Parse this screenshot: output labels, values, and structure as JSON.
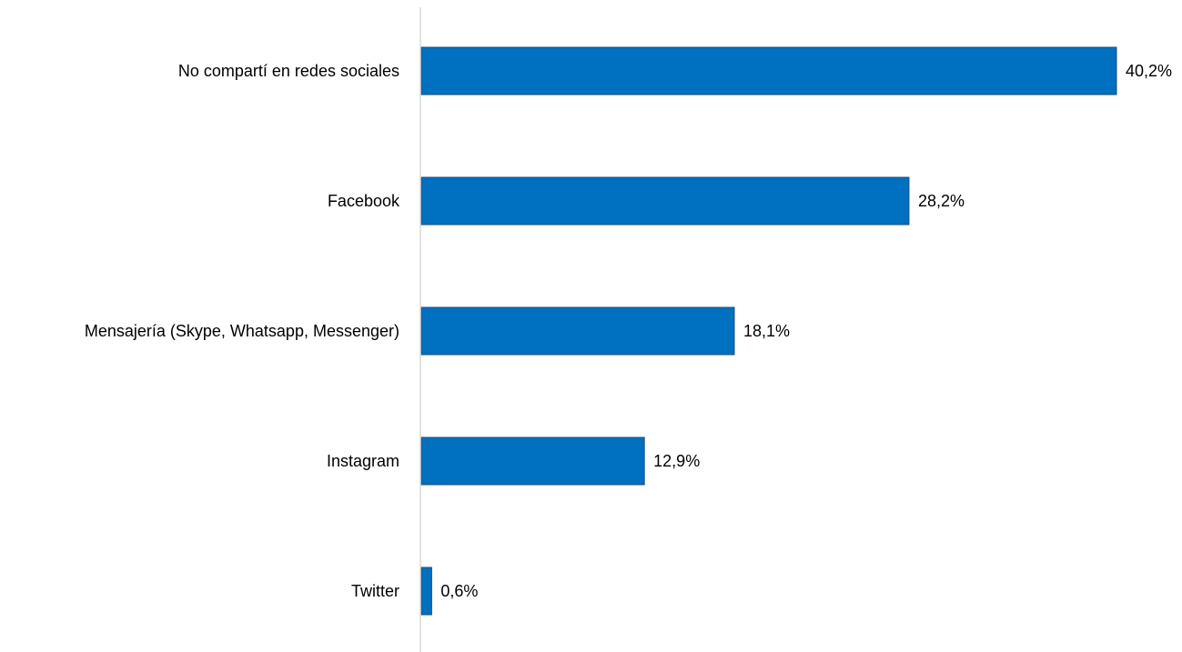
{
  "chart_data": {
    "type": "bar",
    "orientation": "horizontal",
    "categories": [
      "No compartí en redes sociales",
      "Facebook",
      "Mensajería (Skype, Whatsapp, Messenger)",
      "Instagram",
      "Twitter"
    ],
    "values": [
      40.2,
      28.2,
      18.1,
      12.9,
      0.6
    ],
    "value_labels": [
      "40,2%",
      "28,2%",
      "18,1%",
      "12,9%",
      "0,6%"
    ],
    "unit": "%",
    "xlim": [
      0,
      40.2
    ],
    "grid": false,
    "legend": "none",
    "colors": {
      "bar_fill": "#0070C0",
      "bar_stroke": "#1F4E79",
      "axis": "#D9D9D9"
    }
  }
}
